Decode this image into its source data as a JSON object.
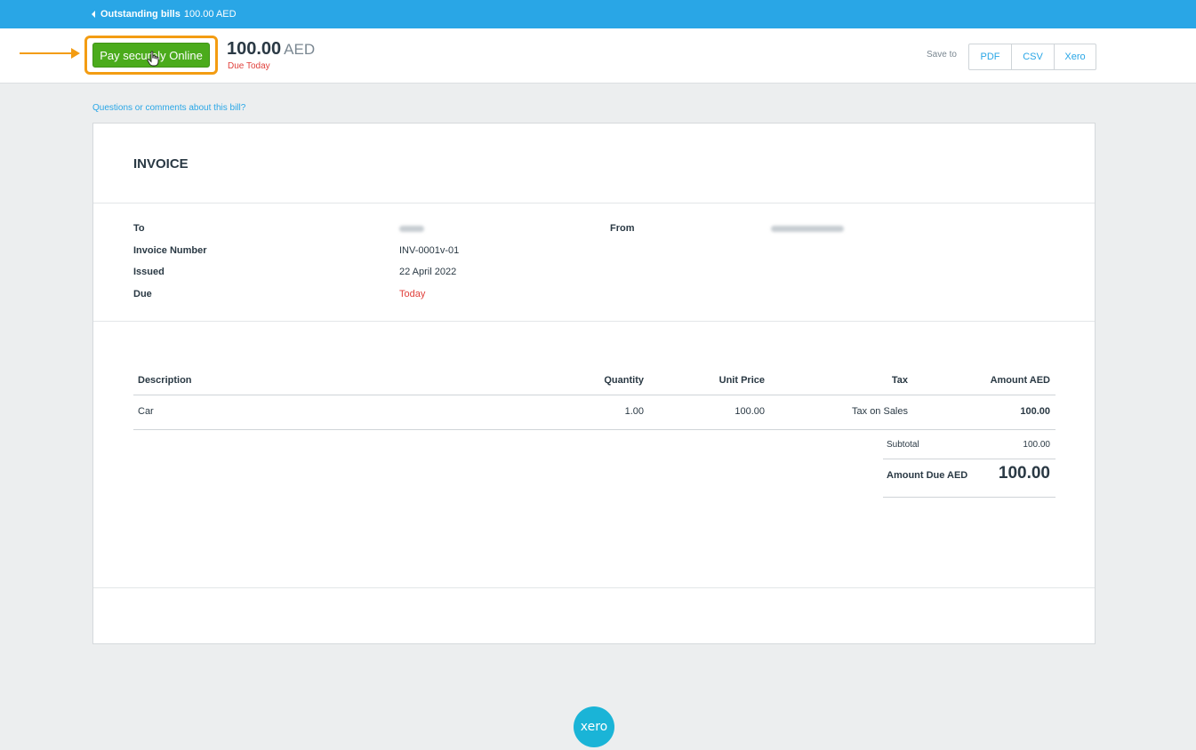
{
  "topbar": {
    "back_label": "Outstanding bills",
    "back_amount": "100.00 AED"
  },
  "header": {
    "pay_button": "Pay securely Online",
    "amount": "100.00",
    "currency": "AED",
    "due_note": "Due Today",
    "save_to": "Save to",
    "save_buttons": [
      "PDF",
      "CSV",
      "Xero"
    ]
  },
  "questions_link": "Questions or comments about this bill?",
  "invoice": {
    "title": "INVOICE",
    "meta": {
      "to_label": "To",
      "invoice_number_label": "Invoice Number",
      "invoice_number": "INV-0001v-01",
      "issued_label": "Issued",
      "issued": "22 April 2022",
      "due_label": "Due",
      "due": "Today",
      "from_label": "From"
    },
    "table": {
      "headers": [
        "Description",
        "Quantity",
        "Unit Price",
        "Tax",
        "Amount AED"
      ],
      "rows": [
        {
          "description": "Car",
          "quantity": "1.00",
          "unit_price": "100.00",
          "tax": "Tax on Sales",
          "amount": "100.00"
        }
      ]
    },
    "subtotal_label": "Subtotal",
    "subtotal": "100.00",
    "amount_due_label": "Amount Due AED",
    "amount_due": "100.00"
  },
  "footer": {
    "logo_text": "xero"
  },
  "colors": {
    "brand_blue": "#29a6e6",
    "pay_green": "#4bab1c",
    "highlight_orange": "#f39c12",
    "alert_red": "#e0413c"
  }
}
